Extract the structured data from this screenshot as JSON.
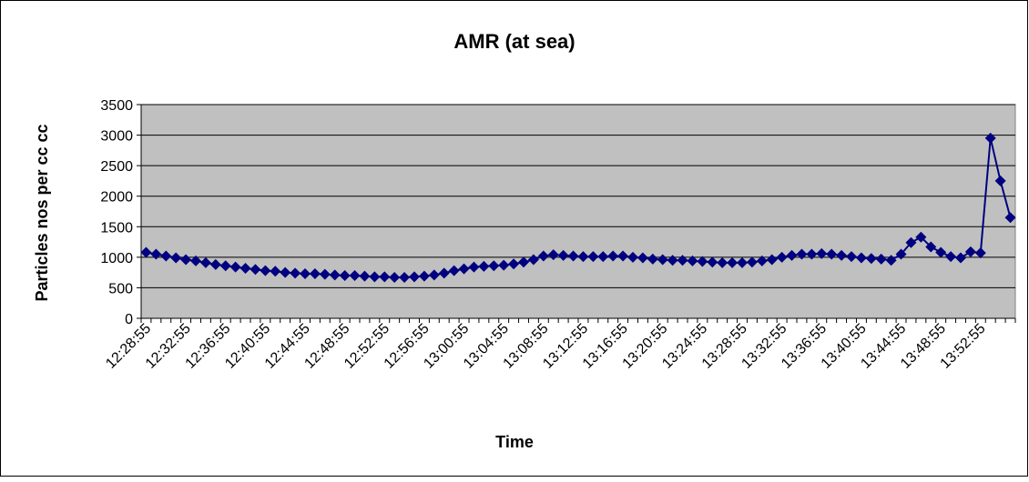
{
  "chart_data": {
    "type": "line",
    "title": "AMR (at sea)",
    "x_label": "Time",
    "y_label": "Particles nos per cc cc",
    "categories": [
      "12:28:55",
      null,
      null,
      null,
      "12:32:55",
      null,
      null,
      null,
      "12:36:55",
      null,
      null,
      null,
      "12:40:55",
      null,
      null,
      null,
      "12:44:55",
      null,
      null,
      null,
      "12:48:55",
      null,
      null,
      null,
      "12:52:55",
      null,
      null,
      null,
      "12:56:55",
      null,
      null,
      null,
      "13:00:55",
      null,
      null,
      null,
      "13:04:55",
      null,
      null,
      null,
      "13:08:55",
      null,
      null,
      null,
      "13:12:55",
      null,
      null,
      null,
      "13:16:55",
      null,
      null,
      null,
      "13:20:55",
      null,
      null,
      null,
      "13:24:55",
      null,
      null,
      null,
      "13:28:55",
      null,
      null,
      null,
      "13:32:55",
      null,
      null,
      null,
      "13:36:55",
      null,
      null,
      null,
      "13:40:55",
      null,
      null,
      null,
      "13:44:55",
      null,
      null,
      null,
      "13:48:55",
      null,
      null,
      null,
      "13:52:55",
      null,
      null,
      null
    ],
    "series": [
      {
        "color": "#000080",
        "values": [
          1080,
          1050,
          1020,
          990,
          960,
          940,
          910,
          880,
          860,
          840,
          820,
          800,
          780,
          770,
          750,
          740,
          730,
          730,
          720,
          710,
          700,
          700,
          690,
          680,
          680,
          670,
          670,
          680,
          690,
          710,
          740,
          780,
          810,
          840,
          850,
          860,
          870,
          890,
          920,
          960,
          1020,
          1040,
          1030,
          1020,
          1010,
          1010,
          1010,
          1020,
          1020,
          1000,
          990,
          970,
          960,
          950,
          950,
          940,
          930,
          920,
          910,
          910,
          910,
          920,
          940,
          960,
          1000,
          1030,
          1050,
          1050,
          1060,
          1050,
          1030,
          1010,
          990,
          980,
          970,
          950,
          1050,
          1240,
          1330,
          1170,
          1080,
          1010,
          990,
          1090,
          1070,
          2950,
          2250,
          1650
        ]
      }
    ],
    "ylim": [
      0,
      3500
    ],
    "yticks": [
      0,
      500,
      1000,
      1500,
      2000,
      2500,
      3000,
      3500
    ],
    "grid": true,
    "plot_background": "#c0c0c0"
  }
}
